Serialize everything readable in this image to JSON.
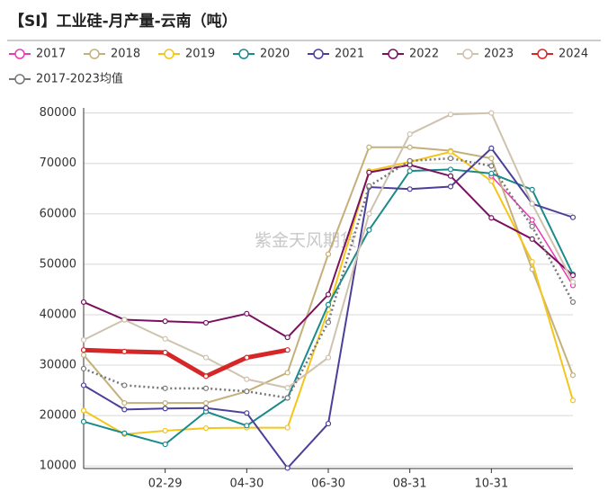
{
  "chart_data": {
    "type": "line",
    "title": "【SI】工业硅-月产量-云南（吨）",
    "watermark": "紫金天风期货",
    "categories": [
      null,
      null,
      "02-29",
      null,
      "04-30",
      null,
      "06-30",
      null,
      "08-31",
      null,
      "10-31",
      null,
      null
    ],
    "ylim": [
      9500,
      81000
    ],
    "yticks": [
      10000,
      20000,
      30000,
      40000,
      50000,
      60000,
      70000,
      80000
    ],
    "grid": true,
    "legend": "top",
    "series": [
      {
        "name": "2017",
        "color": "#e83cb4",
        "width": 1.5,
        "values": [
          null,
          null,
          null,
          null,
          null,
          null,
          null,
          null,
          null,
          null,
          67500,
          58800,
          45800
        ]
      },
      {
        "name": "2018",
        "color": "#c4b07a",
        "width": 2,
        "values": [
          32000,
          22500,
          22500,
          22500,
          24800,
          28500,
          52000,
          73200,
          73200,
          72500,
          71000,
          49000,
          28000
        ]
      },
      {
        "name": "2019",
        "color": "#f5c518",
        "width": 2,
        "values": [
          21000,
          16300,
          17000,
          17500,
          17600,
          17600,
          41000,
          68500,
          70300,
          72300,
          66500,
          50500,
          23000
        ]
      },
      {
        "name": "2020",
        "color": "#1a8a8a",
        "width": 2,
        "values": [
          18800,
          16500,
          14300,
          20800,
          18000,
          23500,
          42000,
          56800,
          68500,
          68800,
          68000,
          64800,
          48000
        ]
      },
      {
        "name": "2021",
        "color": "#4b3f99",
        "width": 2,
        "values": [
          26000,
          21200,
          21400,
          21500,
          20500,
          9600,
          18400,
          65300,
          64900,
          65400,
          73000,
          62000,
          59300
        ]
      },
      {
        "name": "2022",
        "color": "#7a1060",
        "width": 2,
        "values": [
          42500,
          39000,
          38700,
          38400,
          40200,
          35500,
          44000,
          68200,
          69700,
          67500,
          59200,
          55000,
          47800
        ]
      },
      {
        "name": "2023",
        "color": "#cfc2ae",
        "width": 2,
        "values": [
          35000,
          39000,
          35200,
          31500,
          27200,
          25500,
          31500,
          60000,
          75800,
          79700,
          80000,
          62000,
          46500
        ]
      },
      {
        "name": "2024",
        "color": "#d62728",
        "width": 5,
        "values": [
          33000,
          32700,
          32500,
          27800,
          31500,
          33000,
          null,
          null,
          null,
          null,
          null,
          null,
          null
        ]
      },
      {
        "name": "2017-2023均值",
        "color": "#777777",
        "width": 2.5,
        "dash": "2 3",
        "values": [
          29300,
          26000,
          25400,
          25400,
          24800,
          23500,
          38500,
          65500,
          70500,
          71000,
          69500,
          57500,
          42500
        ]
      }
    ]
  }
}
